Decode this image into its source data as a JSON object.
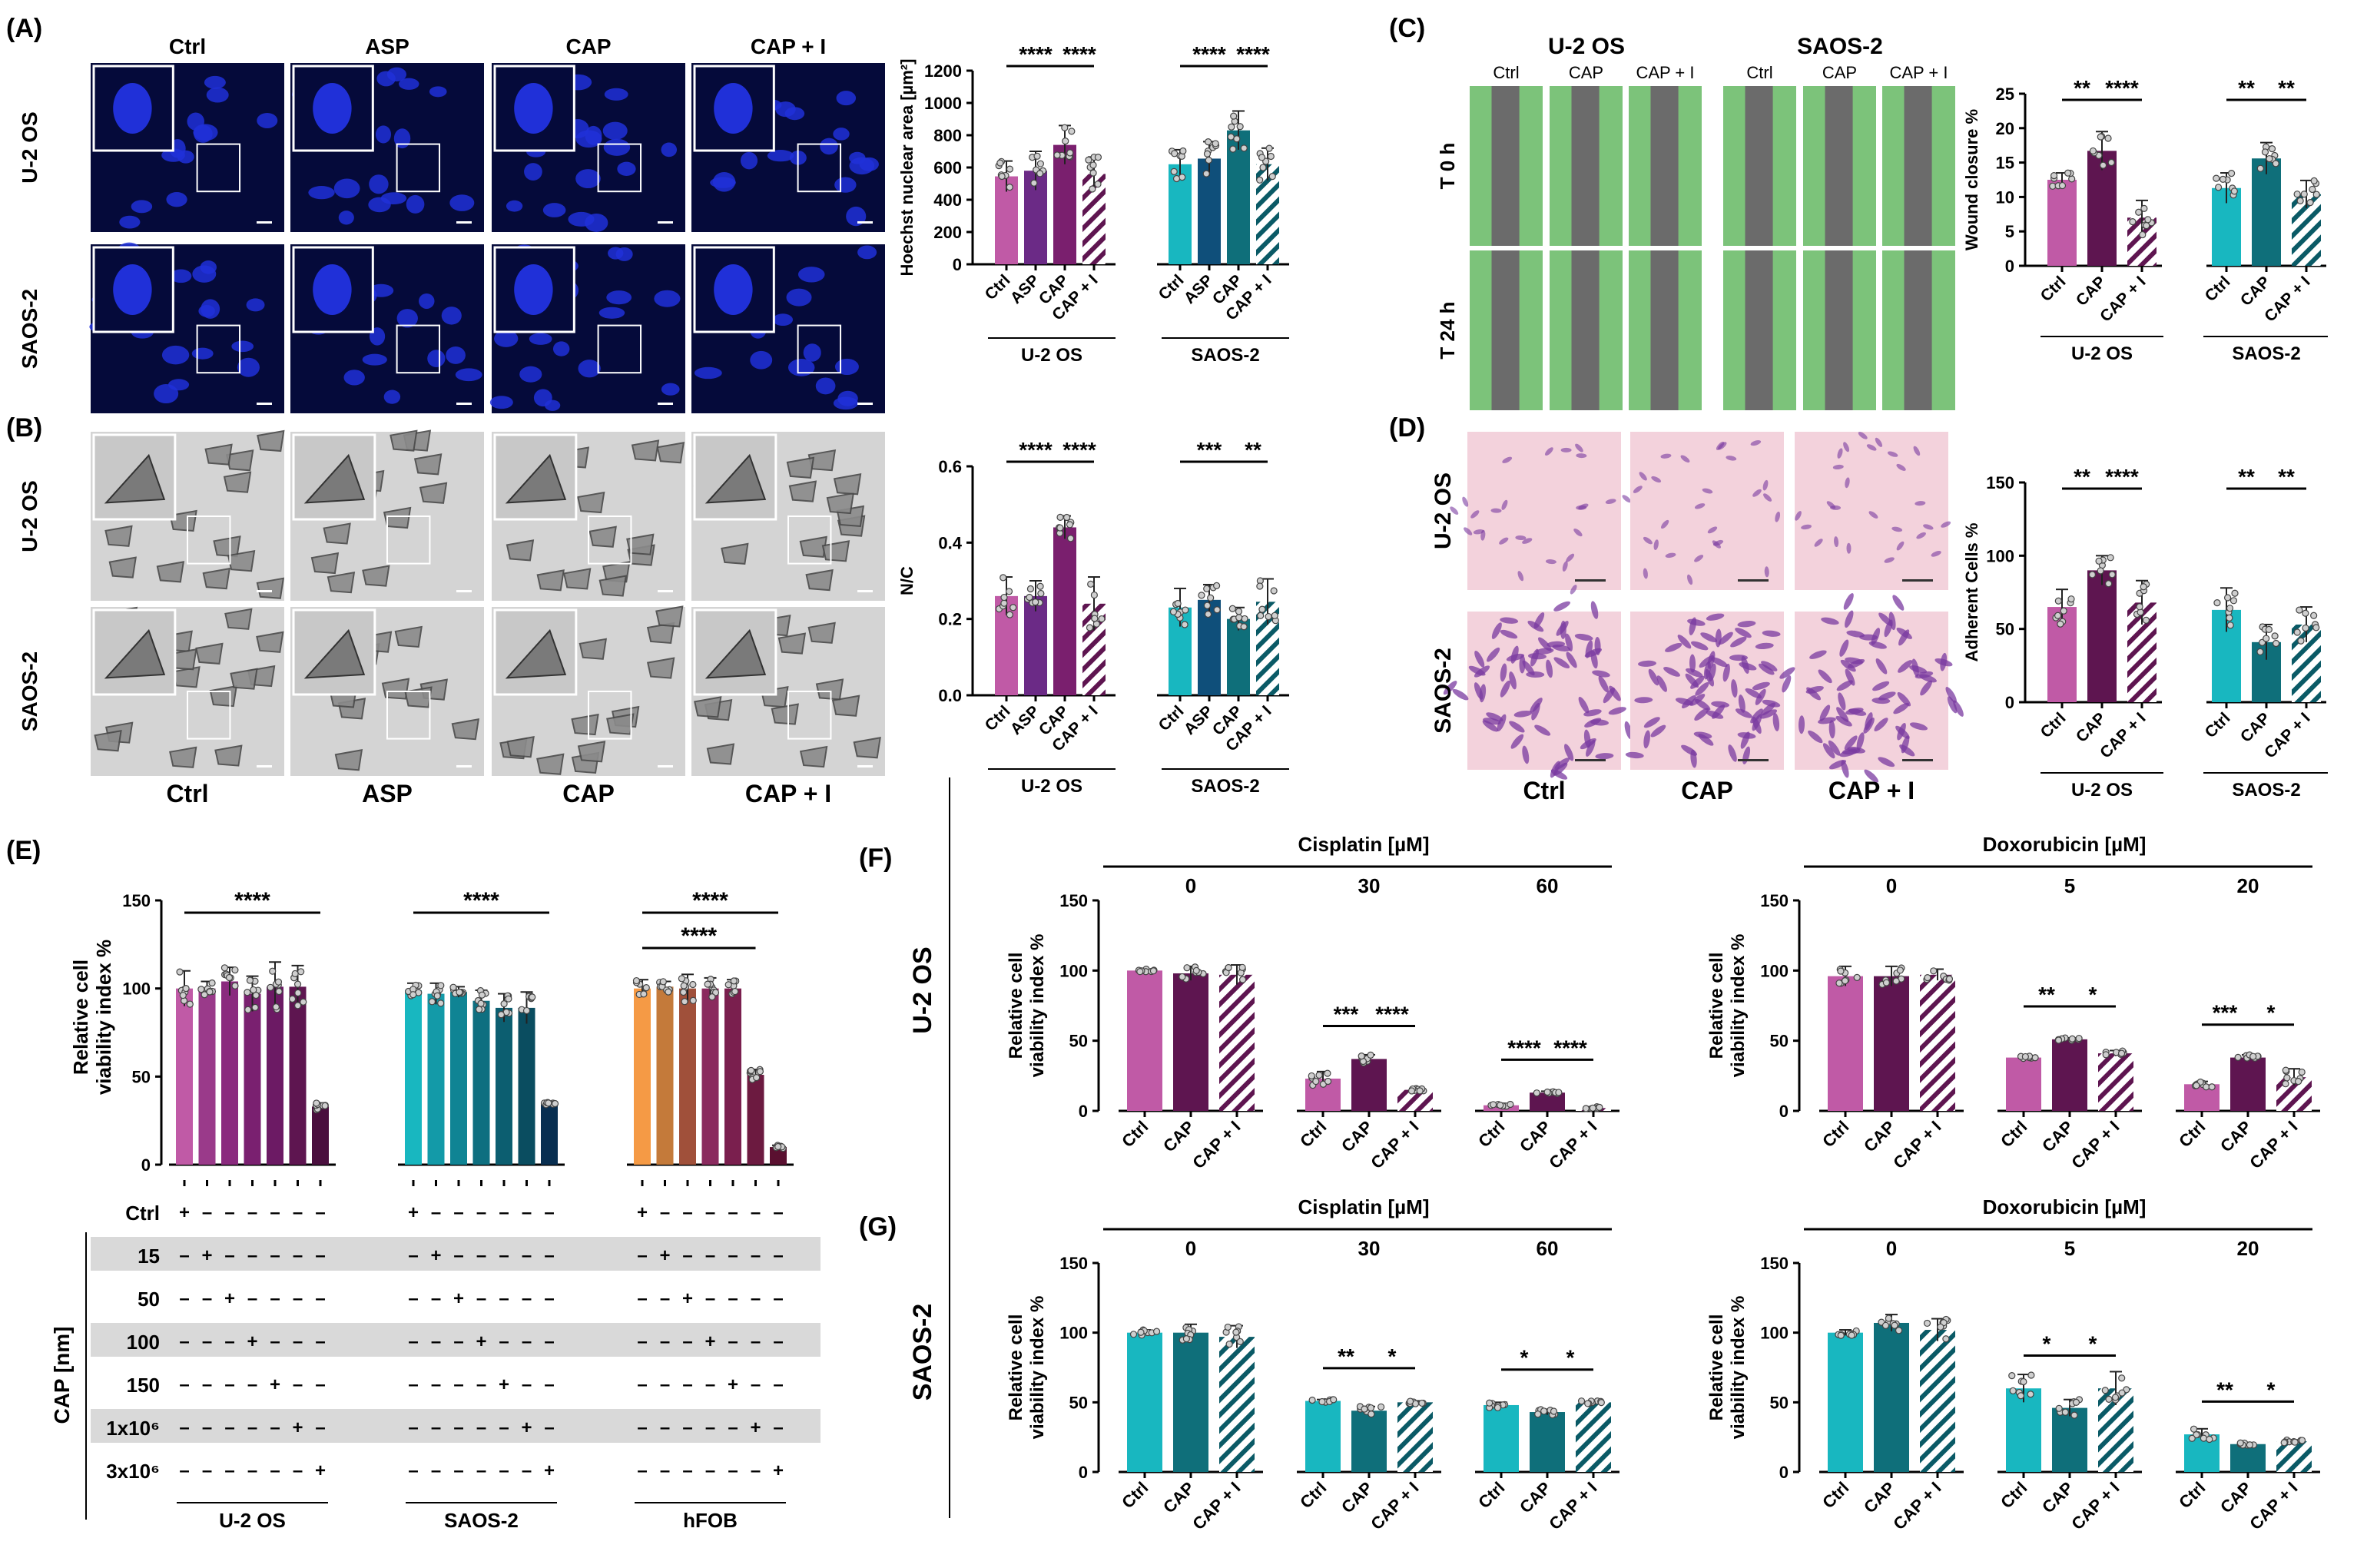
{
  "panel_labels": {
    "A": "(A)",
    "B": "(B)",
    "C": "(C)",
    "D": "(D)",
    "E": "(E)",
    "F": "(F)",
    "G": "(G)"
  },
  "colors": {
    "uos_light": "#c05aa6",
    "uos_mid": "#7a1f6e",
    "uos_dark": "#5e1550",
    "saos_light": "#18b7c0",
    "saos_mid": "#0f6f7a",
    "saos_dark": "#0a4d5a",
    "hfob_light": "#f59a45",
    "nuclei_bg": "#050a3a",
    "nuclei": "#2030d8",
    "wound_green": "#7cc37a",
    "wound_gray": "#6b6b6b",
    "crystal_bg": "#f3d2dc",
    "crystal_cell": "#7a3aa0"
  },
  "micro_a": {
    "cols": [
      "Ctrl",
      "ASP",
      "CAP",
      "CAP + I"
    ],
    "rows": [
      "U-2 OS",
      "SAOS-2"
    ]
  },
  "micro_b": {
    "cols": [
      "Ctrl",
      "ASP",
      "CAP",
      "CAP + I"
    ],
    "rows": [
      "U-2 OS",
      "SAOS-2"
    ]
  },
  "micro_c": {
    "groups": [
      "U-2 OS",
      "SAOS-2"
    ],
    "cols": [
      "Ctrl",
      "CAP",
      "CAP + I",
      "Ctrl",
      "CAP",
      "CAP + I"
    ],
    "rows": [
      "T 0 h",
      "T 24 h"
    ]
  },
  "micro_d": {
    "cols": [
      "Ctrl",
      "CAP",
      "CAP + I"
    ],
    "rows": [
      "U-2 OS",
      "SAOS-2"
    ]
  },
  "chart_data": [
    {
      "id": "A",
      "type": "bar",
      "ylabel_html": "Hoechst nuclear area [µm²]",
      "ylim": [
        0,
        1200
      ],
      "yticks": [
        0,
        200,
        400,
        600,
        800,
        1000,
        1200
      ],
      "categories": [
        "Ctrl",
        "ASP",
        "CAP",
        "CAP + I",
        "Ctrl",
        "ASP",
        "CAP",
        "CAP + I"
      ],
      "groups": [
        {
          "name": "U-2 OS"
        },
        {
          "name": "SAOS-2"
        }
      ],
      "values": [
        545,
        580,
        740,
        560,
        620,
        655,
        830,
        620
      ],
      "errors": [
        95,
        120,
        120,
        105,
        90,
        105,
        120,
        100
      ],
      "sig": [
        {
          "a": 0,
          "b": 2,
          "text": "****"
        },
        {
          "a": 2,
          "b": 3,
          "text": "****"
        },
        {
          "a": 4,
          "b": 6,
          "text": "****"
        },
        {
          "a": 6,
          "b": 7,
          "text": "****"
        }
      ]
    },
    {
      "id": "B",
      "type": "bar",
      "ylabel": "N/C",
      "ylim": [
        0,
        0.6
      ],
      "yticks": [
        "0.0",
        "0.2",
        "0.4",
        "0.6"
      ],
      "categories": [
        "Ctrl",
        "ASP",
        "CAP",
        "CAP + I",
        "Ctrl",
        "ASP",
        "CAP",
        "CAP + I"
      ],
      "groups": [
        {
          "name": "U-2 OS"
        },
        {
          "name": "SAOS-2"
        }
      ],
      "values": [
        0.26,
        0.26,
        0.44,
        0.24,
        0.23,
        0.25,
        0.2,
        0.245
      ],
      "errors": [
        0.05,
        0.04,
        0.03,
        0.07,
        0.05,
        0.04,
        0.03,
        0.06
      ],
      "sig": [
        {
          "a": 0,
          "b": 2,
          "text": "****"
        },
        {
          "a": 2,
          "b": 3,
          "text": "****"
        },
        {
          "a": 4,
          "b": 6,
          "text": "***"
        },
        {
          "a": 6,
          "b": 7,
          "text": "**"
        }
      ]
    },
    {
      "id": "C",
      "type": "bar",
      "ylabel": "Wound closure %",
      "ylim": [
        0,
        25
      ],
      "yticks": [
        "0",
        "5",
        "10",
        "15",
        "20",
        "25"
      ],
      "categories": [
        "Ctrl",
        "CAP",
        "CAP + I",
        "Ctrl",
        "CAP",
        "CAP + I"
      ],
      "groups": [
        {
          "name": "U-2 OS"
        },
        {
          "name": "SAOS-2"
        }
      ],
      "values": [
        12.5,
        16.7,
        7.0,
        11.3,
        15.6,
        10.4
      ],
      "errors": [
        1.0,
        2.8,
        2.5,
        2.2,
        2.3,
        2.0
      ],
      "sig": [
        {
          "a": 0,
          "b": 1,
          "text": "**"
        },
        {
          "a": 1,
          "b": 2,
          "text": "****"
        },
        {
          "a": 3,
          "b": 4,
          "text": "**"
        },
        {
          "a": 4,
          "b": 5,
          "text": "**"
        }
      ]
    },
    {
      "id": "D",
      "type": "bar",
      "ylabel": "Adherent Cells %",
      "ylim": [
        0,
        150
      ],
      "yticks": [
        "0",
        "50",
        "100",
        "150"
      ],
      "categories": [
        "Ctrl",
        "CAP",
        "CAP + I",
        "Ctrl",
        "CAP",
        "CAP + I"
      ],
      "groups": [
        {
          "name": "U-2 OS"
        },
        {
          "name": "SAOS-2"
        }
      ],
      "values": [
        65,
        90,
        68,
        63,
        41,
        53
      ],
      "errors": [
        12,
        10,
        15,
        15,
        12,
        12
      ],
      "sig": [
        {
          "a": 0,
          "b": 1,
          "text": "**"
        },
        {
          "a": 1,
          "b": 2,
          "text": "****"
        },
        {
          "a": 3,
          "b": 4,
          "text": "**"
        },
        {
          "a": 4,
          "b": 5,
          "text": "**"
        }
      ]
    },
    {
      "id": "E",
      "type": "bar",
      "ylabel1": "Relative cell",
      "ylabel2": "viability index %",
      "ylim": [
        0,
        150
      ],
      "yticks": [
        "0",
        "50",
        "100",
        "150"
      ],
      "groups": [
        {
          "name": "U-2 OS",
          "values": [
            100,
            100,
            104,
            97,
            101,
            101,
            33
          ],
          "errors": [
            10,
            4,
            8,
            10,
            14,
            12,
            2
          ]
        },
        {
          "name": "SAOS-2",
          "values": [
            99,
            97,
            98,
            93,
            89,
            89,
            35
          ],
          "errors": [
            4,
            6,
            3,
            6,
            8,
            9,
            1
          ]
        },
        {
          "name": "hFOB",
          "values": [
            100,
            101,
            100,
            100,
            100,
            51,
            10
          ],
          "errors": [
            5,
            3,
            8,
            6,
            5,
            3,
            1
          ]
        }
      ],
      "sig": [
        {
          "g": 0,
          "a": 0,
          "b": 6,
          "text": "****",
          "level": 0
        },
        {
          "g": 1,
          "a": 0,
          "b": 6,
          "text": "****",
          "level": 0
        },
        {
          "g": 2,
          "a": 0,
          "b": 6,
          "text": "****",
          "level": 0
        },
        {
          "g": 2,
          "a": 0,
          "b": 5,
          "text": "****",
          "level": 1
        }
      ],
      "table_rows": [
        "Ctrl",
        "15",
        "50",
        "100",
        "150",
        "1x10⁶",
        "3x10⁶"
      ],
      "table_header": "CAP [nm]"
    },
    {
      "id": "F",
      "type": "bar",
      "row_label": "U-2 OS",
      "subcharts": [
        {
          "drug": "Cisplatin [µM]",
          "doses": [
            "0",
            "30",
            "60"
          ],
          "values": [
            [
              100,
              98,
              97
            ],
            [
              23,
              37,
              15
            ],
            [
              4,
              13,
              2
            ]
          ],
          "errors": [
            [
              1,
              5,
              7
            ],
            [
              5,
              3,
              1
            ],
            [
              1,
              1,
              1
            ]
          ],
          "sig": [
            {
              "d": 1,
              "a": 0,
              "b": 1,
              "text": "***"
            },
            {
              "d": 1,
              "a": 1,
              "b": 2,
              "text": "****"
            },
            {
              "d": 2,
              "a": 0,
              "b": 1,
              "text": "****"
            },
            {
              "d": 2,
              "a": 1,
              "b": 2,
              "text": "****"
            }
          ]
        },
        {
          "drug": "Doxorubicin [µM]",
          "doses": [
            "0",
            "5",
            "20"
          ],
          "values": [
            [
              96,
              96,
              97
            ],
            [
              38,
              51,
              41
            ],
            [
              19,
              38,
              24
            ]
          ],
          "errors": [
            [
              7,
              7,
              4
            ],
            [
              1,
              1,
              2
            ],
            [
              2,
              2,
              6
            ]
          ],
          "sig": [
            {
              "d": 1,
              "a": 0,
              "b": 1,
              "text": "**"
            },
            {
              "d": 1,
              "a": 1,
              "b": 2,
              "text": "*"
            },
            {
              "d": 2,
              "a": 0,
              "b": 1,
              "text": "***"
            },
            {
              "d": 2,
              "a": 1,
              "b": 2,
              "text": "*"
            }
          ]
        }
      ],
      "ylabel1": "Relative cell",
      "ylabel2": "viability index %",
      "yticks": [
        "0",
        "50",
        "100",
        "150"
      ]
    },
    {
      "id": "G",
      "type": "bar",
      "row_label": "SAOS-2",
      "subcharts": [
        {
          "drug": "Cisplatin [µM]",
          "doses": [
            "0",
            "30",
            "60"
          ],
          "values": [
            [
              100,
              100,
              97
            ],
            [
              51,
              44,
              50
            ],
            [
              48,
              43,
              50
            ]
          ],
          "errors": [
            [
              2,
              6,
              8
            ],
            [
              1,
              3,
              1
            ],
            [
              2,
              2,
              1
            ]
          ],
          "sig": [
            {
              "d": 1,
              "a": 0,
              "b": 1,
              "text": "**"
            },
            {
              "d": 1,
              "a": 1,
              "b": 2,
              "text": "*"
            },
            {
              "d": 2,
              "a": 0,
              "b": 1,
              "text": "*"
            },
            {
              "d": 2,
              "a": 1,
              "b": 2,
              "text": "*"
            }
          ]
        },
        {
          "drug": "Doxorubicin [µM]",
          "doses": [
            "0",
            "5",
            "20"
          ],
          "values": [
            [
              100,
              107,
              102
            ],
            [
              60,
              46,
              60
            ],
            [
              27,
              20,
              22
            ]
          ],
          "errors": [
            [
              2,
              6,
              8
            ],
            [
              10,
              6,
              12
            ],
            [
              4,
              1,
              1
            ]
          ],
          "sig": [
            {
              "d": 1,
              "a": 0,
              "b": 1,
              "text": "*"
            },
            {
              "d": 1,
              "a": 1,
              "b": 2,
              "text": "*"
            },
            {
              "d": 2,
              "a": 0,
              "b": 1,
              "text": "**"
            },
            {
              "d": 2,
              "a": 1,
              "b": 2,
              "text": "*"
            }
          ]
        }
      ],
      "ylabel1": "Relative cell",
      "ylabel2": "viability index %",
      "yticks": [
        "0",
        "50",
        "100",
        "150"
      ]
    }
  ],
  "bar_labels": {
    "ctrl": "Ctrl",
    "asp": "ASP",
    "cap": "CAP",
    "capi": "CAP + I"
  }
}
